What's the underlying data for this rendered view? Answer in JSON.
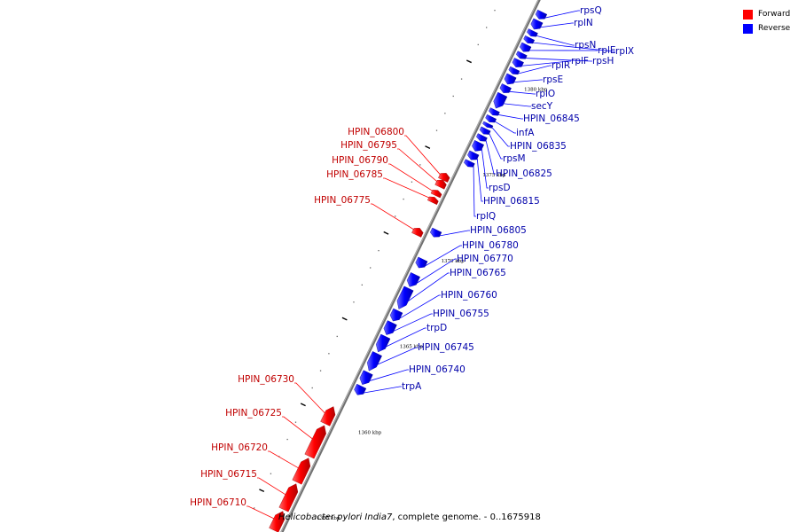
{
  "legend": {
    "forward": {
      "label": "Forward",
      "color": "#ff0000"
    },
    "reverse": {
      "label": "Reverse",
      "color": "#0000ff"
    }
  },
  "caption": {
    "species": "Helicobacter pylori India7",
    "rest": ", complete genome. - 0..1675918"
  },
  "track": {
    "color": "#707070",
    "range_kbp": [
      1353.5,
      1384.5
    ]
  },
  "ticks": [
    {
      "kbp": 1355,
      "label": "1355 kbp"
    },
    {
      "kbp": 1360,
      "label": "1360 kbp"
    },
    {
      "kbp": 1365,
      "label": "1365 kbp"
    },
    {
      "kbp": 1370,
      "label": "1370 kbp"
    },
    {
      "kbp": 1375,
      "label": "1375 kbp"
    },
    {
      "kbp": 1380,
      "label": "1380 kbp"
    }
  ],
  "genes": [
    {
      "name": "HPIN_06710",
      "strand": "forward",
      "start": 1353.4,
      "end": 1354.5
    },
    {
      "name": "HPIN_06715",
      "strand": "forward",
      "start": 1354.6,
      "end": 1356.1
    },
    {
      "name": "HPIN_06720",
      "strand": "forward",
      "start": 1356.2,
      "end": 1357.6
    },
    {
      "name": "HPIN_06725",
      "strand": "forward",
      "start": 1357.7,
      "end": 1359.5
    },
    {
      "name": "HPIN_06730",
      "strand": "forward",
      "start": 1359.6,
      "end": 1360.6
    },
    {
      "name": "trpA",
      "strand": "reverse",
      "start": 1361.7,
      "end": 1362.2
    },
    {
      "name": "HPIN_06740",
      "strand": "reverse",
      "start": 1362.3,
      "end": 1363.0
    },
    {
      "name": "HPIN_06745",
      "strand": "reverse",
      "start": 1363.1,
      "end": 1364.1
    },
    {
      "name": "trpD",
      "strand": "reverse",
      "start": 1364.2,
      "end": 1365.1
    },
    {
      "name": "HPIN_06755",
      "strand": "reverse",
      "start": 1365.2,
      "end": 1365.9
    },
    {
      "name": "HPIN_06760",
      "strand": "reverse",
      "start": 1366.0,
      "end": 1366.6
    },
    {
      "name": "HPIN_06765",
      "strand": "reverse",
      "start": 1366.7,
      "end": 1367.9
    },
    {
      "name": "HPIN_06770",
      "strand": "reverse",
      "start": 1368.0,
      "end": 1368.7
    },
    {
      "name": "HPIN_06780",
      "strand": "reverse",
      "start": 1369.1,
      "end": 1369.6
    },
    {
      "name": "HPIN_06775",
      "strand": "forward",
      "start": 1370.6,
      "end": 1371.0
    },
    {
      "name": "HPIN_06805",
      "strand": "reverse",
      "start": 1370.9,
      "end": 1371.3
    },
    {
      "name": "HPIN_06785",
      "strand": "forward",
      "start": 1372.5,
      "end": 1372.8
    },
    {
      "name": "HPIN_06790",
      "strand": "forward",
      "start": 1372.9,
      "end": 1373.2
    },
    {
      "name": "HPIN_06795",
      "strand": "forward",
      "start": 1373.4,
      "end": 1373.8
    },
    {
      "name": "HPIN_06800",
      "strand": "forward",
      "start": 1373.8,
      "end": 1374.2
    },
    {
      "name": "rplQ",
      "strand": "reverse",
      "start": 1375.0,
      "end": 1375.3
    },
    {
      "name": "HPIN_06815",
      "strand": "reverse",
      "start": 1375.4,
      "end": 1375.8
    },
    {
      "name": "rpsD",
      "strand": "reverse",
      "start": 1375.9,
      "end": 1376.4
    },
    {
      "name": "HPIN_06825",
      "strand": "reverse",
      "start": 1376.5,
      "end": 1376.8
    },
    {
      "name": "rpsM",
      "strand": "reverse",
      "start": 1376.9,
      "end": 1377.2
    },
    {
      "name": "HPIN_06835",
      "strand": "reverse",
      "start": 1377.3,
      "end": 1377.5
    },
    {
      "name": "infA",
      "strand": "reverse",
      "start": 1377.6,
      "end": 1377.9
    },
    {
      "name": "HPIN_06845",
      "strand": "reverse",
      "start": 1378.0,
      "end": 1378.3
    },
    {
      "name": "secY",
      "strand": "reverse",
      "start": 1378.4,
      "end": 1379.2
    },
    {
      "name": "rplO",
      "strand": "reverse",
      "start": 1379.3,
      "end": 1379.7
    },
    {
      "name": "rpsE",
      "strand": "reverse",
      "start": 1379.8,
      "end": 1380.3
    },
    {
      "name": "rplR",
      "strand": "reverse",
      "start": 1380.4,
      "end": 1380.7
    },
    {
      "name": "rplF",
      "strand": "reverse",
      "start": 1380.8,
      "end": 1381.2
    },
    {
      "name": "rpsH",
      "strand": "reverse",
      "start": 1381.3,
      "end": 1381.6
    },
    {
      "name": "rplE",
      "strand": "reverse",
      "start": 1381.7,
      "end": 1382.1
    },
    {
      "name": "rplX",
      "strand": "reverse",
      "start": 1382.2,
      "end": 1382.5
    },
    {
      "name": "rpsN",
      "strand": "reverse",
      "start": 1382.6,
      "end": 1382.9
    },
    {
      "name": "rplN",
      "strand": "reverse",
      "start": 1383.0,
      "end": 1383.5
    },
    {
      "name": "rpsQ",
      "strand": "reverse",
      "start": 1383.6,
      "end": 1384.0
    }
  ]
}
